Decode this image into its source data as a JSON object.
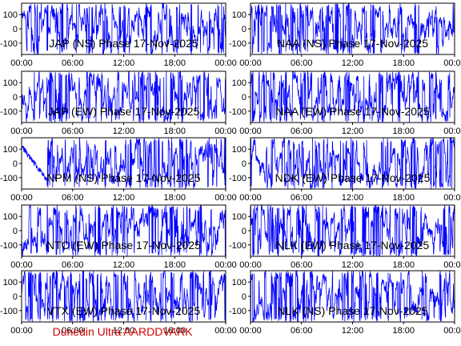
{
  "credit": "Dunedin Ultra AARDDVARK",
  "colors": {
    "trace": "#0000ff",
    "axis": "#000000",
    "credit": "#d00000",
    "background": "#ffffff"
  },
  "chart_data": [
    {
      "type": "line",
      "title": "JAP (NS) Phase 17-Nov-2025",
      "xlim": [
        0,
        24
      ],
      "ylim": [
        -180,
        180
      ],
      "x_ticks": [
        "00:00",
        "06:00",
        "12:00",
        "18:00",
        "00:00"
      ],
      "y_ticks": [
        "-100",
        "0",
        "100"
      ],
      "series": [
        {
          "values_range": [
            -180,
            180
          ],
          "style": "dense-wrapping-noise"
        }
      ]
    },
    {
      "type": "line",
      "title": "NAA (NS) Phase 17-Nov-2025",
      "xlim": [
        0,
        24
      ],
      "ylim": [
        -180,
        180
      ],
      "x_ticks": [
        "00:00",
        "06:00",
        "12:00",
        "18:00",
        "00:00"
      ],
      "y_ticks": [
        "-100",
        "0",
        "100"
      ],
      "series": [
        {
          "values_range": [
            -180,
            180
          ],
          "style": "dense-wrapping-noise"
        }
      ]
    },
    {
      "type": "line",
      "title": "JAP (EW) Phase 17-Nov-2025",
      "xlim": [
        0,
        24
      ],
      "ylim": [
        -180,
        180
      ],
      "x_ticks": [
        "00:00",
        "06:00",
        "12:00",
        "18:00",
        "00:00"
      ],
      "y_ticks": [
        "-100",
        "0",
        "100"
      ],
      "series": [
        {
          "values_range": [
            -180,
            180
          ],
          "style": "dense-wrapping-noise"
        }
      ]
    },
    {
      "type": "line",
      "title": "NAA (EW) Phase 17-Nov-2025",
      "xlim": [
        0,
        24
      ],
      "ylim": [
        -180,
        180
      ],
      "x_ticks": [
        "00:00",
        "06:00",
        "12:00",
        "18:00",
        "00:00"
      ],
      "y_ticks": [
        "-100",
        "0",
        "100"
      ],
      "series": [
        {
          "values_range": [
            -180,
            180
          ],
          "style": "dense-wrapping-noise"
        }
      ]
    },
    {
      "type": "line",
      "title": "NPM (NS) Phase 17-Nov-2025",
      "xlim": [
        0,
        24
      ],
      "ylim": [
        -180,
        180
      ],
      "x_ticks": [
        "00:00",
        "06:00",
        "12:00",
        "18:00",
        "00:00"
      ],
      "y_ticks": [
        "-100",
        "0",
        "100"
      ],
      "series": [
        {
          "values_range": [
            -180,
            180
          ],
          "style": "dense-wrapping-noise",
          "note_visible": "smooth descending segment near start"
        }
      ]
    },
    {
      "type": "line",
      "title": "NDK (EW) Phase 17-Nov-2025",
      "xlim": [
        0,
        24
      ],
      "ylim": [
        -180,
        180
      ],
      "x_ticks": [
        "00:00",
        "06:00",
        "12:00",
        "18:00",
        "00:00"
      ],
      "y_ticks": [
        "-100",
        "0",
        "100"
      ],
      "series": [
        {
          "values_range": [
            -180,
            180
          ],
          "style": "dense-wrapping-noise"
        }
      ]
    },
    {
      "type": "line",
      "title": "NTC (EW) Phase 17-Nov-2025",
      "xlim": [
        0,
        24
      ],
      "ylim": [
        -180,
        180
      ],
      "x_ticks": [
        "00:00",
        "06:00",
        "12:00",
        "18:00",
        "00:00"
      ],
      "y_ticks": [
        "-100",
        "0",
        "100"
      ],
      "series": [
        {
          "values_range": [
            -180,
            180
          ],
          "style": "dense-wrapping-noise"
        }
      ]
    },
    {
      "type": "line",
      "title": "NLK (EW) Phase 17-Nov-2025",
      "xlim": [
        0,
        24
      ],
      "ylim": [
        -180,
        180
      ],
      "x_ticks": [
        "00:00",
        "06:00",
        "12:00",
        "18:00",
        "00:00"
      ],
      "y_ticks": [
        "-100",
        "0",
        "100"
      ],
      "series": [
        {
          "values_range": [
            -180,
            180
          ],
          "style": "dense-wrapping-noise"
        }
      ]
    },
    {
      "type": "line",
      "title": "VTX (EW) Phase 17-Nov-2025",
      "xlim": [
        0,
        24
      ],
      "ylim": [
        -180,
        180
      ],
      "x_ticks": [
        "00:00",
        "06:00",
        "12:00",
        "18:00",
        "00:00"
      ],
      "y_ticks": [
        "-100",
        "0",
        "100"
      ],
      "series": [
        {
          "values_range": [
            -180,
            180
          ],
          "style": "dense-wrapping-noise"
        }
      ]
    },
    {
      "type": "line",
      "title": "NLK (NS) Phase 17-Nov-2025",
      "xlim": [
        0,
        24
      ],
      "ylim": [
        -180,
        180
      ],
      "x_ticks": [
        "00:00",
        "06:00",
        "12:00",
        "18:00",
        "00:00"
      ],
      "y_ticks": [
        "-100",
        "0",
        "100"
      ],
      "series": [
        {
          "values_range": [
            -180,
            180
          ],
          "style": "dense-wrapping-noise"
        }
      ]
    }
  ]
}
